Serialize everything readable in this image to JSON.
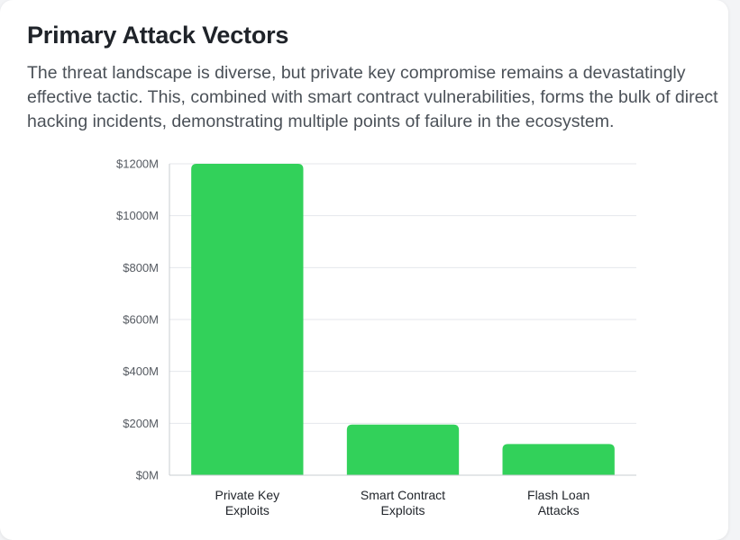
{
  "section": {
    "title": "Primary Attack Vectors",
    "description": "The threat landscape is diverse, but private key compromise remains a devastatingly effective tactic. This, combined with smart contract vulnerabilities, forms the bulk of direct hacking incidents, demonstrating multiple points of failure in the ecosystem."
  },
  "chart_data": {
    "type": "bar",
    "categories": [
      [
        "Private Key",
        "Exploits"
      ],
      [
        "Smart Contract",
        "Exploits"
      ],
      [
        "Flash Loan",
        "Attacks"
      ]
    ],
    "values": [
      1200,
      195,
      120
    ],
    "ylim": [
      0,
      1200
    ],
    "yticks": [
      0,
      200,
      400,
      600,
      800,
      1000,
      1200
    ],
    "ytick_labels": [
      "$0M",
      "$200M",
      "$400M",
      "$600M",
      "$800M",
      "$1000M",
      "$1200M"
    ],
    "grid": true,
    "legend": "none",
    "bar_color": "#32d15a",
    "grid_color": "#e5e7eb",
    "axis_color": "#c9ccd1",
    "tick_label_color": "#555a61",
    "category_label_color": "#1f2329"
  }
}
